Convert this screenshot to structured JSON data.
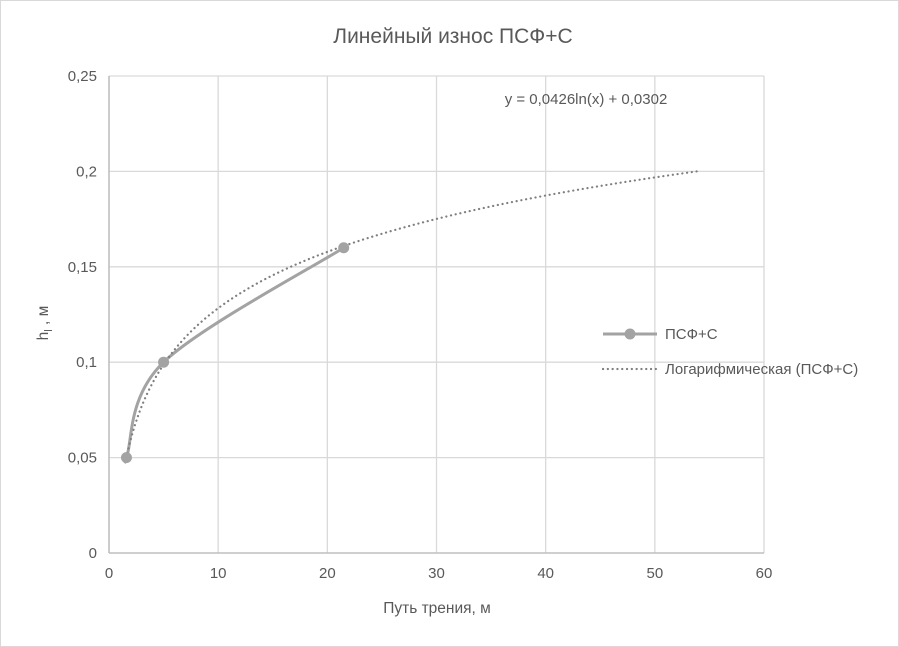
{
  "frame": {
    "background": "#FFFFFF",
    "border_color": "#D9D9D9"
  },
  "chart_data": {
    "type": "line",
    "title": "Линейный износ ПСФ+С",
    "xlabel": "Путь трения, м",
    "ylabel_parts": {
      "main": "h",
      "sub": "l",
      "rest": " , м"
    },
    "xlim": [
      0,
      60
    ],
    "ylim": [
      0,
      0.25
    ],
    "x_ticks": {
      "values": [
        0,
        10,
        20,
        30,
        40,
        50,
        60
      ],
      "labels": [
        "0",
        "10",
        "20",
        "30",
        "40",
        "50",
        "60"
      ]
    },
    "y_ticks": {
      "values": [
        0,
        0.05,
        0.1,
        0.15,
        0.2,
        0.25
      ],
      "labels": [
        "0",
        "0,05",
        "0,1",
        "0,15",
        "0,2",
        "0,25"
      ]
    },
    "grid": true,
    "legend_position": "right-middle",
    "series": [
      {
        "name": "ПСФ+С",
        "style": "smooth-line-with-markers",
        "marker": "circle",
        "color": "#A3A3A3",
        "x": [
          1.6,
          5,
          21.5
        ],
        "y": [
          0.05,
          0.1,
          0.16
        ]
      }
    ],
    "trendline": {
      "name": "Логарифмическая (ПСФ+С)",
      "equation_label": "y = 0,0426ln(x) + 0,0302",
      "type": "logarithmic",
      "a": 0.0426,
      "b": 0.0302,
      "x_start": 1.5,
      "x_end": 54,
      "color": "#7F7F7F",
      "style": "dotted"
    },
    "colors": {
      "grid": "#D9D9D9",
      "axis": "#BFBFBF",
      "text": "#595959",
      "title": "#595959"
    }
  }
}
